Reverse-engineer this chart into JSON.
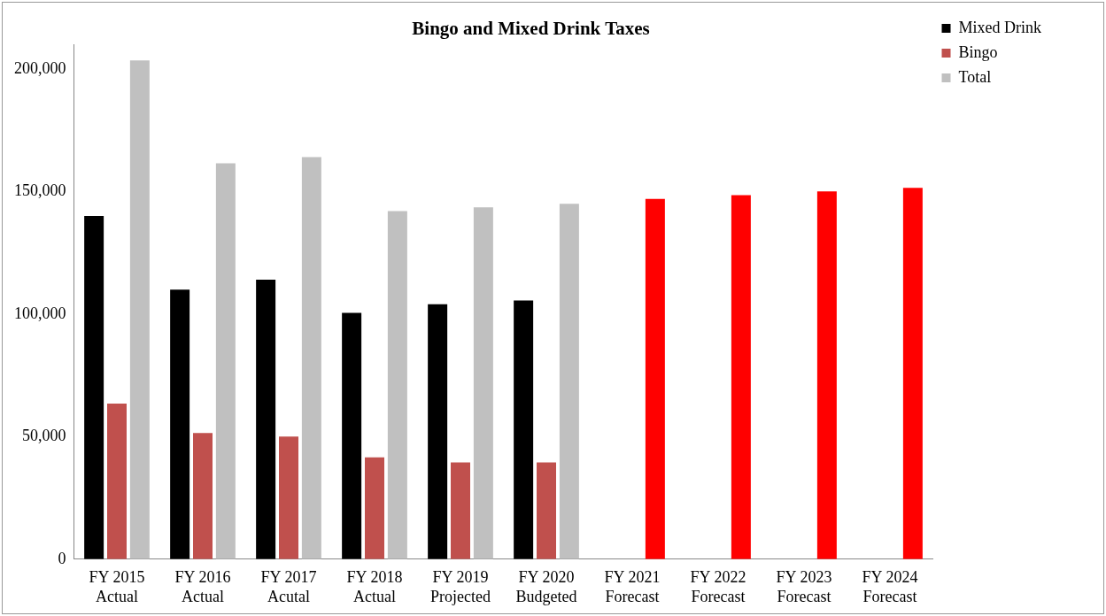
{
  "chart_data": {
    "type": "bar",
    "title": "Bingo and Mixed Drink Taxes",
    "categories": [
      "FY 2015 Actual",
      "FY 2016 Actual",
      "FY 2017 Acutal",
      "FY 2018 Actual",
      "FY 2019 Projected",
      "FY 2020 Budgeted",
      "FY 2021 Forecast",
      "FY 2022 Forecast",
      "FY 2023 Forecast",
      "FY 2024 Forecast"
    ],
    "series": [
      {
        "name": "Mixed Drink",
        "color": "#000000",
        "values": [
          140000,
          110000,
          114000,
          100500,
          104000,
          105500,
          null,
          null,
          null,
          null
        ]
      },
      {
        "name": "Bingo",
        "color": "#c0504d",
        "values": [
          63500,
          51500,
          50000,
          41500,
          39500,
          39500,
          null,
          null,
          null,
          null
        ]
      },
      {
        "name": "Total",
        "color": "#c0c0c0",
        "colors": [
          "#c0c0c0",
          "#c0c0c0",
          "#c0c0c0",
          "#c0c0c0",
          "#c0c0c0",
          "#c0c0c0",
          "#ff0000",
          "#ff0000",
          "#ff0000",
          "#ff0000"
        ],
        "values": [
          203500,
          161500,
          164000,
          142000,
          143500,
          145000,
          147000,
          148500,
          150000,
          151500
        ]
      }
    ],
    "ylim": [
      0,
      210000
    ],
    "yticks": [
      0,
      {
        "value": 50000,
        "label": "50,000"
      },
      {
        "value": 100000,
        "label": "100,000"
      },
      {
        "value": 150000,
        "label": "150,000"
      },
      {
        "value": 200000,
        "label": "200,000"
      }
    ],
    "grid": false,
    "legend": "top right"
  }
}
